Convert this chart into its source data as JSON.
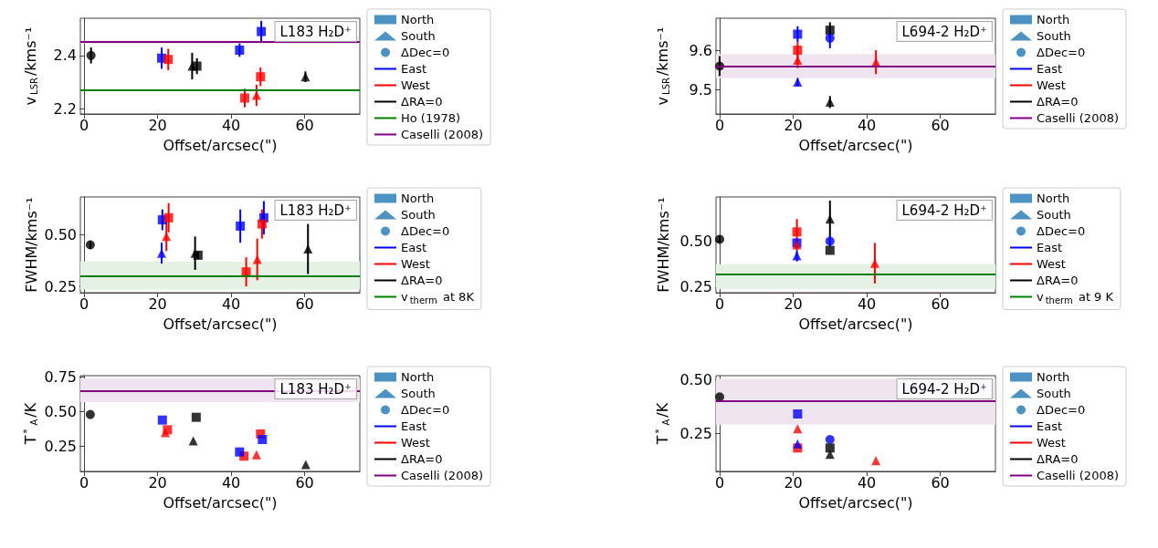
{
  "chart_data": [
    {
      "type": "scatter",
      "xlabel": "Offset/arcsec(\")",
      "ylabel": "v$_{LSR}$/kms⁻¹",
      "annotations": [
        "L183 H₂D⁺"
      ],
      "xlim": [
        -1,
        75
      ],
      "xticks": [
        0,
        20,
        40,
        60
      ],
      "ylim": [
        2.18,
        2.54
      ],
      "yticks": [
        2.2,
        2.4
      ],
      "legend": "right",
      "series": [
        {
          "name": "North",
          "color": "#1f77b4",
          "marker": "square"
        },
        {
          "name": "South",
          "color": "#1f77b4",
          "marker": "triangle"
        },
        {
          "name": "ΔDec=0",
          "color": "#1f77b4",
          "marker": "circle"
        },
        {
          "name": "East",
          "color": "#0000ff",
          "type": "line"
        },
        {
          "name": "West",
          "color": "#ff0000",
          "type": "line"
        },
        {
          "name": "ΔRA=0",
          "color": "#000000",
          "type": "line"
        },
        {
          "color": "#000000",
          "marker": "circle",
          "x": [
            1.9
          ],
          "values": [
            2.4
          ],
          "errors": [
            0.03
          ]
        },
        {
          "color": "#0000ff",
          "marker": "square",
          "x": [
            21.1,
            42.3,
            48.2
          ],
          "values": [
            2.39,
            2.42,
            2.49
          ],
          "errors": [
            0.04,
            0.025,
            0.04
          ]
        },
        {
          "color": "#ff0000",
          "marker": "square",
          "x": [
            22.9,
            43.7,
            48.0
          ],
          "values": [
            2.385,
            2.24,
            2.32
          ],
          "errors": [
            0.04,
            0.035,
            0.035
          ]
        },
        {
          "color": "#ff0000",
          "marker": "triangle",
          "x": [
            46.9
          ],
          "values": [
            2.25
          ],
          "errors": [
            0.04
          ]
        },
        {
          "color": "#000000",
          "marker": "square",
          "x": [
            30.7
          ],
          "values": [
            2.36
          ],
          "errors": [
            0.03
          ]
        },
        {
          "color": "#000000",
          "marker": "triangle",
          "x": [
            29.4,
            60.2
          ],
          "values": [
            2.36,
            2.32
          ],
          "errors": [
            0.05,
            0.02
          ]
        }
      ],
      "ref_lines": [
        {
          "axis": "y",
          "value": 2.27,
          "label": "Ho (1978)",
          "color": "#008000"
        },
        {
          "axis": "y",
          "value": 2.45,
          "label": "Caselli (2008)",
          "color": "#800080"
        }
      ],
      "bands": [
        {
          "axis": "y",
          "from": 2.445,
          "to": 2.455,
          "color": "#ecd9ec"
        }
      ]
    },
    {
      "type": "scatter",
      "xlabel": "Offset/arcsec(\")",
      "ylabel": "v$_{LSR}$/kms⁻¹",
      "annotations": [
        "L694-2 H₂D⁺"
      ],
      "xlim": [
        -1,
        75
      ],
      "xticks": [
        0,
        20,
        40,
        60
      ],
      "ylim": [
        9.44,
        9.68
      ],
      "yticks": [
        9.5,
        9.6
      ],
      "legend": "right",
      "series": [
        {
          "name": "North",
          "color": "#1f77b4",
          "marker": "square"
        },
        {
          "name": "South",
          "color": "#1f77b4",
          "marker": "triangle"
        },
        {
          "name": "ΔDec=0",
          "color": "#1f77b4",
          "marker": "circle"
        },
        {
          "name": "East",
          "color": "#0000ff",
          "type": "line"
        },
        {
          "name": "West",
          "color": "#ff0000",
          "type": "line"
        },
        {
          "name": "ΔRA=0",
          "color": "#000000",
          "type": "line"
        },
        {
          "color": "#000000",
          "marker": "circle",
          "x": [
            0
          ],
          "values": [
            9.56
          ],
          "errors": [
            0.025
          ]
        },
        {
          "color": "#0000ff",
          "marker": "square",
          "x": [
            21.2
          ],
          "values": [
            9.64
          ],
          "errors": [
            0.02
          ]
        },
        {
          "color": "#0000ff",
          "marker": "triangle",
          "x": [
            21.2
          ],
          "values": [
            9.52
          ],
          "errors": [
            0.01
          ]
        },
        {
          "color": "#ff0000",
          "marker": "square",
          "x": [
            21.2
          ],
          "values": [
            9.6
          ],
          "errors": [
            0.02
          ]
        },
        {
          "color": "#ff0000",
          "marker": "triangle",
          "x": [
            21.2,
            42.5
          ],
          "values": [
            9.575,
            9.57
          ],
          "errors": [
            0.02,
            0.03
          ]
        },
        {
          "color": "#000000",
          "marker": "square",
          "x": [
            30
          ],
          "values": [
            9.65
          ],
          "errors": [
            0.02
          ]
        },
        {
          "color": "#0000ff",
          "marker": "circle",
          "x": [
            30
          ],
          "values": [
            9.63
          ],
          "errors": [
            0.025
          ]
        },
        {
          "color": "#000000",
          "marker": "triangle",
          "x": [
            30
          ],
          "values": [
            9.47
          ],
          "errors": [
            0.015
          ]
        }
      ],
      "ref_lines": [
        {
          "axis": "y",
          "value": 9.56,
          "label": "Caselli (2008)",
          "color": "#800080"
        }
      ],
      "bands": [
        {
          "axis": "y",
          "from": 9.53,
          "to": 9.59,
          "color": "#f0e4f0"
        }
      ]
    },
    {
      "type": "scatter",
      "xlabel": "Offset/arcsec(\")",
      "ylabel": "FWHM/kms⁻¹",
      "annotations": [
        "L183 H₂D⁺"
      ],
      "xlim": [
        -1,
        75
      ],
      "xticks": [
        0,
        20,
        40,
        60
      ],
      "ylim": [
        0.22,
        0.68
      ],
      "yticks": [
        {
          "value": 0.25,
          "label": "0.25"
        },
        {
          "value": 0.5,
          "label": "0.50"
        }
      ],
      "legend": "right",
      "series": [
        {
          "name": "North",
          "color": "#1f77b4",
          "marker": "square"
        },
        {
          "name": "South",
          "color": "#1f77b4",
          "marker": "triangle"
        },
        {
          "name": "ΔDec=0",
          "color": "#1f77b4",
          "marker": "circle"
        },
        {
          "name": "East",
          "color": "#0000ff",
          "type": "line"
        },
        {
          "name": "West",
          "color": "#ff0000",
          "type": "line"
        },
        {
          "name": "ΔRA=0",
          "color": "#000000",
          "type": "line"
        },
        {
          "color": "#000000",
          "marker": "circle",
          "x": [
            1.7
          ],
          "values": [
            0.45
          ],
          "errors": [
            0.02
          ]
        },
        {
          "color": "#0000ff",
          "marker": "square",
          "x": [
            21.3,
            42.5,
            48.9
          ],
          "values": [
            0.57,
            0.54,
            0.58
          ],
          "errors": [
            0.05,
            0.08,
            0.08
          ]
        },
        {
          "color": "#0000ff",
          "marker": "triangle",
          "x": [
            21.1
          ],
          "values": [
            0.41
          ],
          "errors": [
            0.05
          ]
        },
        {
          "color": "#ff0000",
          "marker": "square",
          "x": [
            23.0,
            44.1,
            48.4
          ],
          "values": [
            0.58,
            0.32,
            0.55
          ],
          "errors": [
            0.07,
            0.07,
            0.07
          ]
        },
        {
          "color": "#ff0000",
          "marker": "triangle",
          "x": [
            22.4,
            47.1
          ],
          "values": [
            0.49,
            0.38
          ],
          "errors": [
            0.07,
            0.1
          ]
        },
        {
          "color": "#000000",
          "marker": "square",
          "x": [
            31.0
          ],
          "values": [
            0.4
          ],
          "errors": [
            0.02
          ]
        },
        {
          "color": "#000000",
          "marker": "triangle",
          "x": [
            30.2,
            60.9
          ],
          "values": [
            0.41,
            0.43
          ],
          "errors": [
            0.08,
            0.12
          ]
        }
      ],
      "ref_lines": [
        {
          "axis": "y",
          "value": 0.3,
          "label": "v$_{therm}$ at 8K",
          "color": "#008000"
        }
      ],
      "bands": [
        {
          "axis": "y",
          "from": 0.235,
          "to": 0.37,
          "color": "#e4f1e4"
        }
      ]
    },
    {
      "type": "scatter",
      "xlabel": "Offset/arcsec(\")",
      "ylabel": "FWHM/kms⁻¹",
      "annotations": [
        "L694-2 H₂D⁺"
      ],
      "xlim": [
        -1,
        75
      ],
      "xticks": [
        0,
        20,
        40,
        60
      ],
      "ylim": [
        0.22,
        0.74
      ],
      "yticks": [
        {
          "value": 0.25,
          "label": "0.25"
        },
        {
          "value": 0.5,
          "label": "0.50"
        }
      ],
      "legend": "right",
      "series": [
        {
          "name": "North",
          "color": "#1f77b4",
          "marker": "square"
        },
        {
          "name": "South",
          "color": "#1f77b4",
          "marker": "triangle"
        },
        {
          "name": "ΔDec=0",
          "color": "#1f77b4",
          "marker": "circle"
        },
        {
          "name": "East",
          "color": "#0000ff",
          "type": "line"
        },
        {
          "name": "West",
          "color": "#ff0000",
          "type": "line"
        },
        {
          "name": "ΔRA=0",
          "color": "#000000",
          "type": "line"
        },
        {
          "color": "#000000",
          "marker": "circle",
          "x": [
            0
          ],
          "values": [
            0.51
          ],
          "errors": [
            0.02
          ]
        },
        {
          "color": "#ff0000",
          "marker": "square",
          "x": [
            21
          ],
          "values": [
            0.55
          ],
          "errors": [
            0.07
          ]
        },
        {
          "color": "#0000ff",
          "marker": "square",
          "x": [
            21
          ],
          "values": [
            0.49
          ],
          "errors": [
            0.02
          ]
        },
        {
          "color": "#0000ff",
          "marker": "triangle",
          "x": [
            21
          ],
          "values": [
            0.42
          ],
          "errors": [
            0.03
          ]
        },
        {
          "color": "#ff0000",
          "marker": "triangle",
          "x": [
            21,
            42.2
          ],
          "values": [
            0.48,
            0.38
          ],
          "errors": [
            0.03,
            0.11
          ]
        },
        {
          "color": "#000000",
          "marker": "triangle",
          "x": [
            30
          ],
          "values": [
            0.62
          ],
          "errors": [
            0.1
          ]
        },
        {
          "color": "#0000ff",
          "marker": "circle",
          "x": [
            30
          ],
          "values": [
            0.5
          ],
          "errors": [
            0.03
          ]
        },
        {
          "color": "#000000",
          "marker": "square",
          "x": [
            30
          ],
          "values": [
            0.45
          ]
        }
      ],
      "ref_lines": [
        {
          "axis": "y",
          "value": 0.32,
          "label": "v$_{therm}$ at 9 K",
          "color": "#008000"
        }
      ],
      "bands": [
        {
          "axis": "y",
          "from": 0.24,
          "to": 0.375,
          "color": "#e4f1e4"
        }
      ]
    },
    {
      "type": "scatter",
      "xlabel": "Offset/arcsec(\")",
      "ylabel": "T$^{*}$$_{A}$/K",
      "annotations": [
        "L183 H₂D⁺"
      ],
      "xlim": [
        -1,
        75
      ],
      "xticks": [
        0,
        20,
        40,
        60
      ],
      "ylim": [
        0.07,
        0.76
      ],
      "yticks": [
        {
          "value": 0.25,
          "label": "0.25"
        },
        {
          "value": 0.5,
          "label": "0.50"
        },
        {
          "value": 0.75,
          "label": "0.75"
        }
      ],
      "legend": "right",
      "series": [
        {
          "name": "North",
          "color": "#1f77b4",
          "marker": "square"
        },
        {
          "name": "South",
          "color": "#1f77b4",
          "marker": "triangle"
        },
        {
          "name": "ΔDec=0",
          "color": "#1f77b4",
          "marker": "circle"
        },
        {
          "name": "East",
          "color": "#0000ff",
          "type": "line"
        },
        {
          "name": "West",
          "color": "#ff0000",
          "type": "line"
        },
        {
          "name": "ΔRA=0",
          "color": "#000000",
          "type": "line"
        },
        {
          "color": "#000000",
          "marker": "circle",
          "x": [
            1.7
          ],
          "values": [
            0.48
          ]
        },
        {
          "color": "#ff0000",
          "marker": "square",
          "x": [
            22.7,
            43.5,
            48.0
          ],
          "values": [
            0.37,
            0.18,
            0.34
          ]
        },
        {
          "color": "#0000ff",
          "marker": "square",
          "x": [
            21.3,
            42.3,
            48.5
          ],
          "values": [
            0.44,
            0.21,
            0.3
          ]
        },
        {
          "color": "#ff0000",
          "marker": "triangle",
          "x": [
            22.1,
            46.9
          ],
          "values": [
            0.35,
            0.19
          ]
        },
        {
          "color": "#000000",
          "marker": "square",
          "x": [
            30.5
          ],
          "values": [
            0.46
          ]
        },
        {
          "color": "#000000",
          "marker": "triangle",
          "x": [
            29.7,
            60.3
          ],
          "values": [
            0.29,
            0.12
          ]
        }
      ],
      "ref_lines": [
        {
          "axis": "y",
          "value": 0.65,
          "label": "Caselli (2008)",
          "color": "#800080"
        }
      ],
      "bands": [
        {
          "axis": "y",
          "from": 0.57,
          "to": 0.74,
          "color": "#f0e4f0"
        }
      ]
    },
    {
      "type": "scatter",
      "xlabel": "Offset/arcsec(\")",
      "ylabel": "T$^{*}$$_{A}$/K",
      "annotations": [
        "L694-2 H₂D⁺"
      ],
      "xlim": [
        -1,
        75
      ],
      "xticks": [
        0,
        20,
        40,
        60
      ],
      "ylim": [
        0.07,
        0.52
      ],
      "yticks": [
        {
          "value": 0.25,
          "label": "0.25"
        },
        {
          "value": 0.5,
          "label": "0.50"
        }
      ],
      "legend": "right",
      "series": [
        {
          "name": "North",
          "color": "#1f77b4",
          "marker": "square"
        },
        {
          "name": "South",
          "color": "#1f77b4",
          "marker": "triangle"
        },
        {
          "name": "ΔDec=0",
          "color": "#1f77b4",
          "marker": "circle"
        },
        {
          "name": "East",
          "color": "#0000ff",
          "type": "line"
        },
        {
          "name": "West",
          "color": "#ff0000",
          "type": "line"
        },
        {
          "name": "ΔRA=0",
          "color": "#000000",
          "type": "line"
        },
        {
          "color": "#000000",
          "marker": "circle",
          "x": [
            0
          ],
          "values": [
            0.42
          ]
        },
        {
          "color": "#0000ff",
          "marker": "square",
          "x": [
            21.2
          ],
          "values": [
            0.34
          ]
        },
        {
          "color": "#ff0000",
          "marker": "triangle",
          "x": [
            21.2,
            42.5
          ],
          "values": [
            0.27,
            0.12
          ]
        },
        {
          "color": "#ff0000",
          "marker": "square",
          "x": [
            21.2
          ],
          "values": [
            0.18
          ]
        },
        {
          "color": "#0000ff",
          "marker": "triangle",
          "x": [
            21.2
          ],
          "values": [
            0.2
          ]
        },
        {
          "color": "#0000ff",
          "marker": "circle",
          "x": [
            30
          ],
          "values": [
            0.22
          ]
        },
        {
          "color": "#000000",
          "marker": "square",
          "x": [
            30
          ],
          "values": [
            0.18
          ]
        },
        {
          "color": "#000000",
          "marker": "triangle",
          "x": [
            30
          ],
          "values": [
            0.15
          ]
        }
      ],
      "ref_lines": [
        {
          "axis": "y",
          "value": 0.4,
          "label": "Caselli (2008)",
          "color": "#800080"
        }
      ],
      "bands": [
        {
          "axis": "y",
          "from": 0.29,
          "to": 0.505,
          "color": "#f0e4f0"
        }
      ]
    }
  ]
}
